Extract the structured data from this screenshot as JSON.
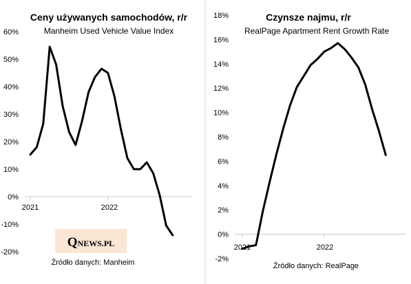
{
  "chart_data": [
    {
      "type": "line",
      "title": "Ceny używanych samochodów, r/r",
      "subtitle": "Manheim Used Vehicle Value Index",
      "source": "Źródło danych: Manheim",
      "ylim": [
        -0.2,
        0.6
      ],
      "yticks": [
        -0.2,
        -0.1,
        0,
        0.1,
        0.2,
        0.3,
        0.4,
        0.5,
        0.6
      ],
      "ytick_labels": [
        "-20%",
        "-10%",
        "0%",
        "10%",
        "20%",
        "30%",
        "40%",
        "50%",
        "60%"
      ],
      "xlim": [
        0,
        25
      ],
      "xticks": [
        0,
        12
      ],
      "xtick_labels": [
        "2021",
        "2022"
      ],
      "grid": false,
      "color": "#000000",
      "x": [
        0,
        1,
        2,
        3,
        4,
        5,
        6,
        7,
        8,
        9,
        10,
        11,
        12,
        13,
        14,
        15,
        16,
        17,
        18,
        19,
        20,
        21,
        22
      ],
      "values": [
        0.153,
        0.18,
        0.265,
        0.545,
        0.48,
        0.33,
        0.235,
        0.188,
        0.275,
        0.38,
        0.435,
        0.465,
        0.45,
        0.365,
        0.245,
        0.14,
        0.1,
        0.1,
        0.125,
        0.085,
        0.005,
        -0.105,
        -0.14
      ]
    },
    {
      "type": "line",
      "title": "Czynsze najmu, r/r",
      "subtitle": "RealPage Apartment Rent Growth Rate",
      "source": "Źródło danych: RealPage",
      "ylim": [
        -0.02,
        0.18
      ],
      "yticks": [
        -0.02,
        0,
        0.02,
        0.04,
        0.06,
        0.08,
        0.1,
        0.12,
        0.14,
        0.16,
        0.18
      ],
      "ytick_labels": [
        "-2%",
        "0%",
        "2%",
        "4%",
        "6%",
        "8%",
        "10%",
        "12%",
        "14%",
        "16%",
        "18%"
      ],
      "xlim": [
        0,
        24
      ],
      "xticks": [
        0,
        12
      ],
      "xtick_labels": [
        "2021",
        "2022"
      ],
      "grid": false,
      "color": "#000000",
      "x": [
        0,
        1,
        2,
        3,
        4,
        5,
        6,
        7,
        8,
        9,
        10,
        11,
        12,
        13,
        14,
        15,
        16,
        17,
        18,
        19,
        20,
        21
      ],
      "values": [
        -0.012,
        -0.01,
        -0.009,
        0.019,
        0.043,
        0.066,
        0.087,
        0.106,
        0.121,
        0.13,
        0.139,
        0.144,
        0.15,
        0.153,
        0.157,
        0.152,
        0.145,
        0.137,
        0.123,
        0.103,
        0.085,
        0.065
      ]
    }
  ],
  "logo": {
    "big": "Q",
    "small": "NEWS.PL",
    "bg": "#fbe6d4"
  },
  "colors": {
    "divider": "#d4d4d4",
    "axis": "#c8c8c8",
    "line": "#000000"
  }
}
